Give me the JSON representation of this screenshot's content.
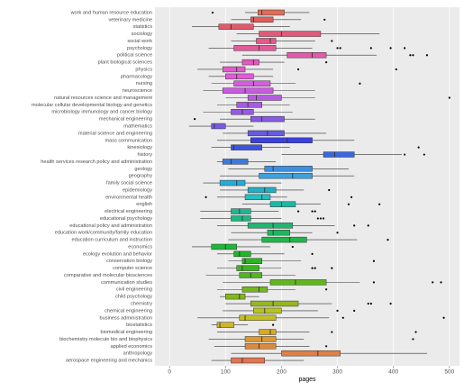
{
  "chart_data": {
    "type": "boxplot",
    "x_label": "pages",
    "categories": [
      "work and human resource education",
      "veterinary medicine",
      "statistics",
      "sociology",
      "social work",
      "psychology",
      "political science",
      "plant biological sciences",
      "physics",
      "pharmacology",
      "nursing",
      "neuroscience",
      "natural resources science and management",
      "molecular cellular developmental biology and genetics",
      "microbiology immunology and cancer biology",
      "mechanical engineering",
      "mathematics",
      "material science and engineering",
      "mass communication",
      "kinesiology",
      "history",
      "health services research policy and administration",
      "geology",
      "geography",
      "family social science",
      "epidemiology",
      "environmental health",
      "english",
      "electrical engineering",
      "educational psychology",
      "educational policy and administration",
      "education work/community/family education",
      "education curriculum and instruction",
      "economics",
      "ecology evolution and behavior",
      "conservation biology",
      "computer science",
      "comparative and molecular biosciences",
      "communication studies",
      "civil engineering",
      "child psychology",
      "chemistry",
      "chemical engineering",
      "business administration",
      "biostatistics",
      "biomedical engineering",
      "biochemistry molecule bio and biophysics",
      "applied economics",
      "anthropology",
      "aerospace engineering and mechanics"
    ],
    "boxes": [
      {
        "min": 135,
        "q1": 158,
        "median": 165,
        "q3": 205,
        "max": 250,
        "outliers": [
          77
        ]
      },
      {
        "min": 110,
        "q1": 145,
        "median": 150,
        "q3": 185,
        "max": 235,
        "outliers": [
          277
        ]
      },
      {
        "min": 40,
        "q1": 88,
        "median": 110,
        "q3": 150,
        "max": 215,
        "outliers": []
      },
      {
        "min": 120,
        "q1": 160,
        "median": 200,
        "q3": 270,
        "max": 375,
        "outliers": []
      },
      {
        "min": 110,
        "q1": 155,
        "median": 180,
        "q3": 190,
        "max": 260,
        "outliers": [
          290
        ]
      },
      {
        "min": 70,
        "q1": 115,
        "median": 160,
        "q3": 190,
        "max": 255,
        "outliers": [
          300,
          305,
          360,
          395,
          420
        ]
      },
      {
        "min": 130,
        "q1": 210,
        "median": 255,
        "q3": 280,
        "max": 370,
        "outliers": [
          430,
          435,
          460
        ]
      },
      {
        "min": 90,
        "q1": 130,
        "median": 150,
        "q3": 160,
        "max": 205,
        "outliers": [
          280
        ]
      },
      {
        "min": 50,
        "q1": 95,
        "median": 120,
        "q3": 135,
        "max": 185,
        "outliers": [
          230,
          405
        ]
      },
      {
        "min": 70,
        "q1": 100,
        "median": 120,
        "q3": 150,
        "max": 185,
        "outliers": []
      },
      {
        "min": 75,
        "q1": 115,
        "median": 150,
        "q3": 180,
        "max": 225,
        "outliers": [
          340
        ]
      },
      {
        "min": 60,
        "q1": 95,
        "median": 135,
        "q3": 185,
        "max": 260,
        "outliers": []
      },
      {
        "min": 100,
        "q1": 140,
        "median": 155,
        "q3": 200,
        "max": 260,
        "outliers": [
          500
        ]
      },
      {
        "min": 85,
        "q1": 120,
        "median": 140,
        "q3": 165,
        "max": 215,
        "outliers": []
      },
      {
        "min": 60,
        "q1": 110,
        "median": 130,
        "q3": 150,
        "max": 220,
        "outliers": []
      },
      {
        "min": 90,
        "q1": 145,
        "median": 165,
        "q3": 205,
        "max": 260,
        "outliers": [
          45
        ]
      },
      {
        "min": 35,
        "q1": 75,
        "median": 80,
        "q3": 100,
        "max": 150,
        "outliers": []
      },
      {
        "min": 95,
        "q1": 140,
        "median": 175,
        "q3": 205,
        "max": 280,
        "outliers": []
      },
      {
        "min": 85,
        "q1": 145,
        "median": 210,
        "q3": 255,
        "max": 330,
        "outliers": []
      },
      {
        "min": 75,
        "q1": 110,
        "median": 115,
        "q3": 165,
        "max": 215,
        "outliers": [
          445
        ]
      },
      {
        "min": 200,
        "q1": 275,
        "median": 295,
        "q3": 330,
        "max": 415,
        "outliers": [
          420,
          455
        ]
      },
      {
        "min": 85,
        "q1": 95,
        "median": 110,
        "q3": 140,
        "max": 190,
        "outliers": []
      },
      {
        "min": 105,
        "q1": 170,
        "median": 185,
        "q3": 255,
        "max": 320,
        "outliers": []
      },
      {
        "min": 90,
        "q1": 160,
        "median": 220,
        "q3": 255,
        "max": 330,
        "outliers": []
      },
      {
        "min": 60,
        "q1": 90,
        "median": 120,
        "q3": 135,
        "max": 200,
        "outliers": []
      },
      {
        "min": 90,
        "q1": 140,
        "median": 170,
        "q3": 190,
        "max": 240,
        "outliers": [
          285
        ]
      },
      {
        "min": 85,
        "q1": 135,
        "median": 165,
        "q3": 180,
        "max": 210,
        "outliers": [
          65,
          325
        ]
      },
      {
        "min": 130,
        "q1": 180,
        "median": 200,
        "q3": 225,
        "max": 270,
        "outliers": [
          320,
          375
        ]
      },
      {
        "min": 55,
        "q1": 110,
        "median": 125,
        "q3": 145,
        "max": 195,
        "outliers": [
          230,
          255,
          260
        ]
      },
      {
        "min": 55,
        "q1": 110,
        "median": 130,
        "q3": 145,
        "max": 200,
        "outliers": [
          265,
          270,
          275
        ]
      },
      {
        "min": 85,
        "q1": 140,
        "median": 185,
        "q3": 220,
        "max": 295,
        "outliers": [
          330,
          355
        ]
      },
      {
        "min": 110,
        "q1": 175,
        "median": 185,
        "q3": 215,
        "max": 255,
        "outliers": [
          300
        ]
      },
      {
        "min": 105,
        "q1": 165,
        "median": 215,
        "q3": 245,
        "max": 335,
        "outliers": [
          390
        ]
      },
      {
        "min": 40,
        "q1": 75,
        "median": 100,
        "q3": 120,
        "max": 180,
        "outliers": [
          220
        ]
      },
      {
        "min": 85,
        "q1": 115,
        "median": 125,
        "q3": 145,
        "max": 205,
        "outliers": [
          255
        ]
      },
      {
        "min": 105,
        "q1": 130,
        "median": 135,
        "q3": 165,
        "max": 235,
        "outliers": [
          365
        ]
      },
      {
        "min": 85,
        "q1": 120,
        "median": 130,
        "q3": 160,
        "max": 200,
        "outliers": [
          255,
          260,
          290
        ]
      },
      {
        "min": 65,
        "q1": 125,
        "median": 145,
        "q3": 165,
        "max": 225,
        "outliers": []
      },
      {
        "min": 95,
        "q1": 180,
        "median": 225,
        "q3": 280,
        "max": 340,
        "outliers": [
          365,
          470,
          485
        ]
      },
      {
        "min": 85,
        "q1": 130,
        "median": 160,
        "q3": 175,
        "max": 225,
        "outliers": [
          280
        ]
      },
      {
        "min": 90,
        "q1": 100,
        "median": 125,
        "q3": 135,
        "max": 160,
        "outliers": []
      },
      {
        "min": 100,
        "q1": 145,
        "median": 185,
        "q3": 230,
        "max": 290,
        "outliers": [
          355,
          360,
          395
        ]
      },
      {
        "min": 95,
        "q1": 150,
        "median": 170,
        "q3": 200,
        "max": 265,
        "outliers": [
          300,
          330
        ]
      },
      {
        "min": 50,
        "q1": 125,
        "median": 135,
        "q3": 190,
        "max": 285,
        "outliers": [
          310,
          490
        ]
      },
      {
        "min": 75,
        "q1": 85,
        "median": 90,
        "q3": 115,
        "max": 140,
        "outliers": [
          185
        ]
      },
      {
        "min": 85,
        "q1": 160,
        "median": 180,
        "q3": 190,
        "max": 250,
        "outliers": [
          290,
          440
        ]
      },
      {
        "min": 70,
        "q1": 135,
        "median": 165,
        "q3": 190,
        "max": 240,
        "outliers": [
          435
        ]
      },
      {
        "min": 80,
        "q1": 135,
        "median": 160,
        "q3": 190,
        "max": 250,
        "outliers": [
          280
        ]
      },
      {
        "min": 110,
        "q1": 200,
        "median": 265,
        "q3": 305,
        "max": 460,
        "outliers": []
      },
      {
        "min": 75,
        "q1": 110,
        "median": 130,
        "q3": 170,
        "max": 240,
        "outliers": []
      }
    ],
    "colors": [
      "hsl(8,70%,62%)",
      "hsl(1,70%,62%)",
      "hsl(353,70%,62%)",
      "hsl(346,70%,62%)",
      "hsl(339,70%,62%)",
      "hsl(332,70%,62%)",
      "hsl(325,70%,62%)",
      "hsl(317,70%,62%)",
      "hsl(310,70%,62%)",
      "hsl(303,70%,62%)",
      "hsl(296,70%,62%)",
      "hsl(289,70%,62%)",
      "hsl(281,70%,62%)",
      "hsl(274,70%,62%)",
      "hsl(267,70%,62%)",
      "hsl(260,70%,62%)",
      "hsl(253,70%,62%)",
      "hsl(245,70%,62%)",
      "hsl(238,70%,55%)",
      "hsl(231,70%,55%)",
      "hsl(224,70%,55%)",
      "hsl(217,70%,55%)",
      "hsl(209,70%,55%)",
      "hsl(202,70%,55%)",
      "hsl(195,70%,50%)",
      "hsl(188,70%,45%)",
      "hsl(181,70%,45%)",
      "hsl(173,70%,42%)",
      "hsl(166,70%,42%)",
      "hsl(159,70%,42%)",
      "hsl(152,70%,42%)",
      "hsl(145,70%,42%)",
      "hsl(137,70%,42%)",
      "hsl(130,70%,42%)",
      "hsl(123,70%,42%)",
      "hsl(116,70%,42%)",
      "hsl(109,70%,42%)",
      "hsl(101,70%,42%)",
      "hsl(94,70%,42%)",
      "hsl(87,70%,42%)",
      "hsl(80,70%,42%)",
      "hsl(73,70%,42%)",
      "hsl(65,70%,45%)",
      "hsl(58,70%,45%)",
      "hsl(51,70%,48%)",
      "hsl(44,70%,50%)",
      "hsl(37,70%,52%)",
      "hsl(29,70%,55%)",
      "hsl(22,70%,58%)",
      "hsl(15,70%,60%)"
    ],
    "xlim": [
      -26,
      518
    ],
    "xticks": [
      0,
      100,
      200,
      300,
      400,
      500
    ],
    "grid": true
  }
}
